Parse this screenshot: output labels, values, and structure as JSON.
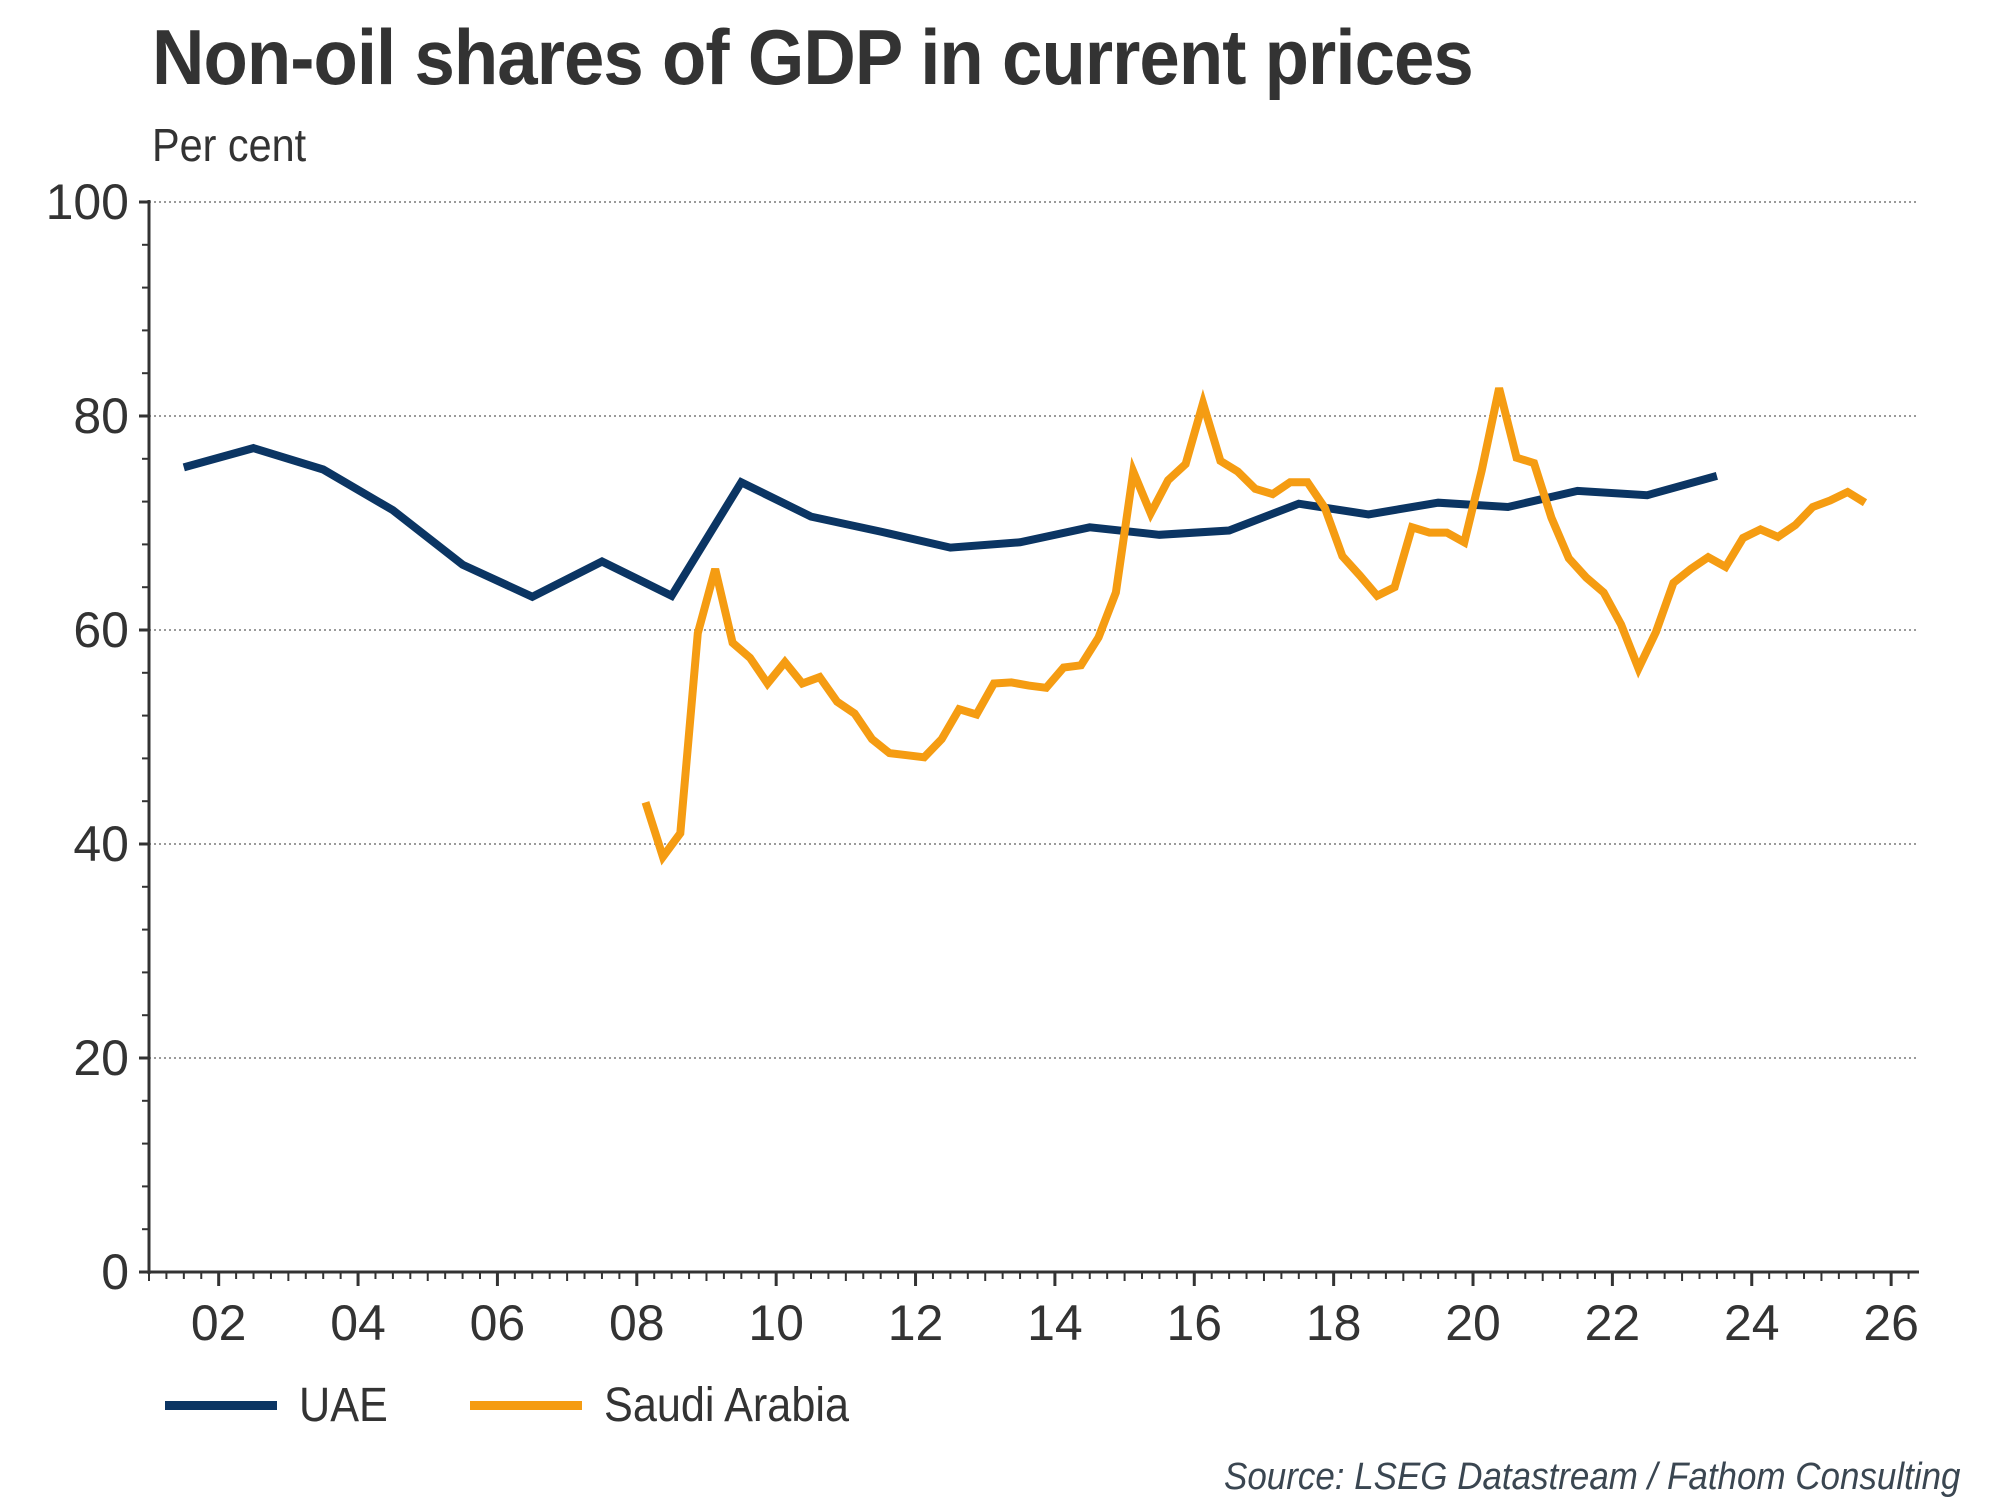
{
  "chart_data": {
    "type": "line",
    "title": "Non-oil shares of GDP in current prices",
    "subtitle": "Per cent",
    "xlabel": "",
    "ylabel": "Per cent",
    "ylim": [
      0,
      100
    ],
    "xlim": [
      2001,
      2026.4
    ],
    "yticks": [
      0,
      20,
      40,
      60,
      80,
      100
    ],
    "ytick_labels": [
      "0",
      "20",
      "40",
      "60",
      "80",
      "100"
    ],
    "xticks": [
      2002,
      2004,
      2006,
      2008,
      2010,
      2012,
      2014,
      2016,
      2018,
      2020,
      2022,
      2024,
      2026
    ],
    "xtick_labels": [
      "02",
      "04",
      "06",
      "08",
      "10",
      "12",
      "14",
      "16",
      "18",
      "20",
      "22",
      "24",
      "26"
    ],
    "grid": "horizontal dotted",
    "legend_position": "bottom-left",
    "source": "Source: LSEG Datastream / Fathom Consulting",
    "series": [
      {
        "name": "UAE",
        "color": "#0b3563",
        "x": [
          2001.5,
          2002.5,
          2003.5,
          2004.5,
          2005.5,
          2006.5,
          2007.5,
          2008.5,
          2009.5,
          2010.5,
          2011.5,
          2012.5,
          2013.5,
          2014.5,
          2015.5,
          2016.5,
          2017.5,
          2018.5,
          2019.5,
          2020.5,
          2021.5,
          2022.5,
          2023.5
        ],
        "values": [
          75.2,
          77.0,
          75.0,
          71.2,
          66.1,
          63.1,
          66.4,
          63.2,
          73.8,
          70.6,
          69.2,
          67.7,
          68.2,
          69.6,
          68.9,
          69.3,
          71.8,
          70.8,
          71.9,
          71.5,
          73.0,
          72.6,
          74.4
        ]
      },
      {
        "name": "Saudi Arabia",
        "color": "#f59c12",
        "x": [
          2008.125,
          2008.375,
          2008.625,
          2008.875,
          2009.125,
          2009.375,
          2009.625,
          2009.875,
          2010.125,
          2010.375,
          2010.625,
          2010.875,
          2011.125,
          2011.375,
          2011.625,
          2011.875,
          2012.125,
          2012.375,
          2012.625,
          2012.875,
          2013.125,
          2013.375,
          2013.625,
          2013.875,
          2014.125,
          2014.375,
          2014.625,
          2014.875,
          2015.125,
          2015.375,
          2015.625,
          2015.875,
          2016.125,
          2016.375,
          2016.625,
          2016.875,
          2017.125,
          2017.375,
          2017.625,
          2017.875,
          2018.125,
          2018.375,
          2018.625,
          2018.875,
          2019.125,
          2019.375,
          2019.625,
          2019.875,
          2020.125,
          2020.375,
          2020.625,
          2020.875,
          2021.125,
          2021.375,
          2021.625,
          2021.875,
          2022.125,
          2022.375,
          2022.625,
          2022.875,
          2023.125,
          2023.375,
          2023.625,
          2023.875,
          2024.125,
          2024.375,
          2024.625,
          2024.875,
          2025.125,
          2025.375,
          2025.625
        ],
        "values": [
          43.9,
          38.8,
          41.0,
          59.7,
          65.7,
          58.8,
          57.4,
          55.0,
          57.0,
          55.0,
          55.6,
          53.3,
          52.2,
          49.8,
          48.5,
          48.3,
          48.1,
          49.8,
          52.6,
          52.1,
          55.0,
          55.1,
          54.8,
          54.6,
          56.5,
          56.7,
          59.3,
          63.5,
          74.8,
          70.9,
          74.0,
          75.5,
          81.2,
          75.8,
          74.8,
          73.2,
          72.7,
          73.8,
          73.8,
          71.4,
          66.9,
          65.1,
          63.2,
          64.0,
          69.6,
          69.1,
          69.1,
          68.2,
          74.9,
          82.6,
          76.1,
          75.6,
          70.5,
          66.7,
          64.9,
          63.5,
          60.5,
          56.4,
          59.8,
          64.4,
          65.7,
          66.8,
          65.9,
          68.6,
          69.4,
          68.7,
          69.8,
          71.5,
          72.1,
          72.9,
          71.9
        ]
      }
    ]
  }
}
